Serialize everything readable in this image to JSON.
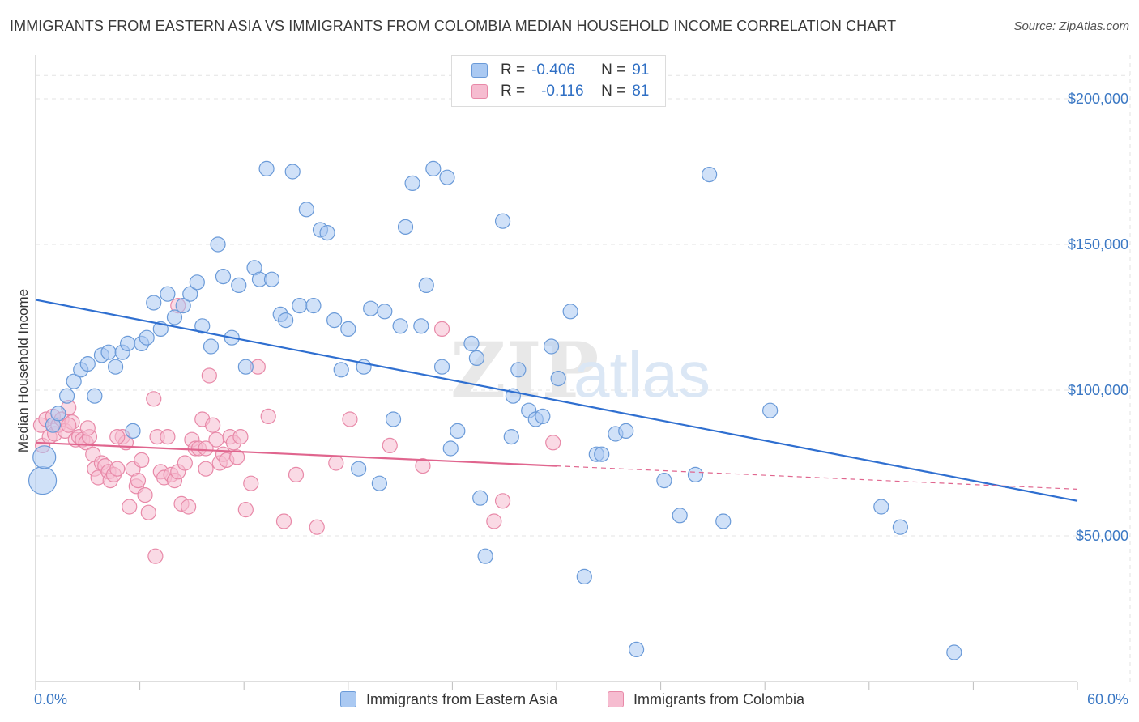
{
  "header": {
    "title": "IMMIGRANTS FROM EASTERN ASIA VS IMMIGRANTS FROM COLOMBIA MEDIAN HOUSEHOLD INCOME CORRELATION CHART",
    "source": "Source: ZipAtlas.com"
  },
  "legend": {
    "r_label": "R =",
    "n_label": "N =",
    "rows": [
      {
        "r": "-0.406",
        "n": "91"
      },
      {
        "r": "-0.116",
        "n": "81"
      }
    ]
  },
  "watermark": {
    "zip": "ZIP",
    "atlas": "atlas"
  },
  "colors": {
    "blue_fill": "#aac9f2",
    "blue_stroke": "#6a9ad8",
    "blue_line": "#2f6fd0",
    "pink_fill": "#f6bcd0",
    "pink_stroke": "#e889a8",
    "pink_line": "#e0658e",
    "axis_text": "#3b78c4"
  },
  "chart_data": {
    "type": "scatter",
    "title": "IMMIGRANTS FROM EASTERN ASIA VS IMMIGRANTS FROM COLOMBIA MEDIAN HOUSEHOLD INCOME CORRELATION CHART",
    "xlabel": "",
    "ylabel": "Median Household Income",
    "xlim": [
      0,
      60
    ],
    "ylim": [
      0,
      215000
    ],
    "x_tick_labels": [
      "0.0%",
      "60.0%"
    ],
    "y_ticks": [
      50000,
      100000,
      150000,
      200000
    ],
    "y_tick_labels": [
      "$50,000",
      "$100,000",
      "$150,000",
      "$200,000"
    ],
    "grid": true,
    "legend_position": "top-center",
    "series": [
      {
        "name": "Immigrants from Eastern Asia",
        "trend": {
          "x": [
            0,
            60
          ],
          "y": [
            131000,
            62000
          ]
        },
        "points": [
          [
            0.4,
            69000
          ],
          [
            0.5,
            77000
          ],
          [
            1.0,
            88000
          ],
          [
            1.3,
            92000
          ],
          [
            1.8,
            98000
          ],
          [
            2.2,
            103000
          ],
          [
            2.6,
            107000
          ],
          [
            3.0,
            109000
          ],
          [
            3.4,
            98000
          ],
          [
            3.8,
            112000
          ],
          [
            4.2,
            113000
          ],
          [
            4.6,
            108000
          ],
          [
            5.0,
            113000
          ],
          [
            5.3,
            116000
          ],
          [
            5.6,
            86000
          ],
          [
            6.1,
            116000
          ],
          [
            6.4,
            118000
          ],
          [
            6.8,
            130000
          ],
          [
            7.2,
            121000
          ],
          [
            7.6,
            133000
          ],
          [
            8.0,
            125000
          ],
          [
            8.5,
            129000
          ],
          [
            8.9,
            133000
          ],
          [
            9.3,
            137000
          ],
          [
            9.6,
            122000
          ],
          [
            10.1,
            115000
          ],
          [
            10.5,
            150000
          ],
          [
            10.8,
            139000
          ],
          [
            11.3,
            118000
          ],
          [
            11.7,
            136000
          ],
          [
            12.1,
            108000
          ],
          [
            12.6,
            142000
          ],
          [
            12.9,
            138000
          ],
          [
            13.3,
            176000
          ],
          [
            13.6,
            138000
          ],
          [
            14.1,
            126000
          ],
          [
            14.4,
            124000
          ],
          [
            14.8,
            175000
          ],
          [
            15.2,
            129000
          ],
          [
            15.6,
            162000
          ],
          [
            16.0,
            129000
          ],
          [
            16.4,
            155000
          ],
          [
            16.8,
            154000
          ],
          [
            17.2,
            124000
          ],
          [
            17.6,
            107000
          ],
          [
            18.0,
            121000
          ],
          [
            18.6,
            73000
          ],
          [
            18.9,
            108000
          ],
          [
            19.3,
            128000
          ],
          [
            19.8,
            68000
          ],
          [
            20.1,
            127000
          ],
          [
            20.6,
            90000
          ],
          [
            21.0,
            122000
          ],
          [
            21.3,
            156000
          ],
          [
            21.7,
            171000
          ],
          [
            22.2,
            122000
          ],
          [
            22.5,
            136000
          ],
          [
            22.9,
            176000
          ],
          [
            23.4,
            108000
          ],
          [
            23.7,
            173000
          ],
          [
            23.9,
            80000
          ],
          [
            24.3,
            86000
          ],
          [
            25.1,
            116000
          ],
          [
            25.4,
            111000
          ],
          [
            25.6,
            63000
          ],
          [
            25.9,
            43000
          ],
          [
            26.9,
            158000
          ],
          [
            27.4,
            84000
          ],
          [
            27.8,
            107000
          ],
          [
            27.5,
            98000
          ],
          [
            28.4,
            93000
          ],
          [
            28.8,
            90000
          ],
          [
            29.2,
            91000
          ],
          [
            29.7,
            115000
          ],
          [
            30.1,
            104000
          ],
          [
            30.8,
            127000
          ],
          [
            31.6,
            36000
          ],
          [
            32.3,
            78000
          ],
          [
            32.6,
            78000
          ],
          [
            33.4,
            85000
          ],
          [
            34.0,
            86000
          ],
          [
            34.6,
            11000
          ],
          [
            36.2,
            69000
          ],
          [
            37.1,
            57000
          ],
          [
            38.0,
            71000
          ],
          [
            38.8,
            174000
          ],
          [
            39.6,
            55000
          ],
          [
            42.3,
            93000
          ],
          [
            48.7,
            60000
          ],
          [
            49.8,
            53000
          ],
          [
            52.9,
            10000
          ]
        ]
      },
      {
        "name": "Immigrants from Colombia",
        "trend": {
          "x": [
            0,
            60
          ],
          "y": [
            82000,
            66000
          ],
          "solid_until": 30
        },
        "points": [
          [
            0.3,
            88000
          ],
          [
            0.4,
            81000
          ],
          [
            0.6,
            90000
          ],
          [
            0.8,
            84000
          ],
          [
            1.0,
            91000
          ],
          [
            1.1,
            85000
          ],
          [
            1.3,
            88000
          ],
          [
            1.5,
            90000
          ],
          [
            1.7,
            86000
          ],
          [
            1.9,
            94000
          ],
          [
            2.1,
            89000
          ],
          [
            2.3,
            83000
          ],
          [
            2.5,
            84000
          ],
          [
            2.7,
            83000
          ],
          [
            2.9,
            82000
          ],
          [
            3.1,
            84000
          ],
          [
            3.3,
            78000
          ],
          [
            3.4,
            73000
          ],
          [
            3.6,
            70000
          ],
          [
            3.8,
            75000
          ],
          [
            4.0,
            74000
          ],
          [
            4.2,
            72000
          ],
          [
            4.3,
            69000
          ],
          [
            4.5,
            71000
          ],
          [
            4.7,
            73000
          ],
          [
            5.0,
            84000
          ],
          [
            5.2,
            82000
          ],
          [
            5.4,
            60000
          ],
          [
            5.6,
            73000
          ],
          [
            5.8,
            67000
          ],
          [
            5.9,
            69000
          ],
          [
            6.1,
            76000
          ],
          [
            6.3,
            64000
          ],
          [
            6.5,
            58000
          ],
          [
            6.8,
            97000
          ],
          [
            7.0,
            84000
          ],
          [
            7.2,
            72000
          ],
          [
            7.4,
            70000
          ],
          [
            7.6,
            84000
          ],
          [
            7.8,
            71000
          ],
          [
            8.0,
            69000
          ],
          [
            8.2,
            72000
          ],
          [
            8.4,
            61000
          ],
          [
            8.6,
            75000
          ],
          [
            8.8,
            60000
          ],
          [
            9.0,
            83000
          ],
          [
            9.2,
            80000
          ],
          [
            9.4,
            80000
          ],
          [
            9.6,
            90000
          ],
          [
            9.8,
            73000
          ],
          [
            10.0,
            105000
          ],
          [
            10.2,
            88000
          ],
          [
            10.4,
            83000
          ],
          [
            10.6,
            75000
          ],
          [
            10.8,
            78000
          ],
          [
            11.0,
            76000
          ],
          [
            11.2,
            84000
          ],
          [
            11.4,
            82000
          ],
          [
            11.6,
            77000
          ],
          [
            11.8,
            84000
          ],
          [
            12.1,
            59000
          ],
          [
            12.4,
            68000
          ],
          [
            12.8,
            108000
          ],
          [
            13.4,
            91000
          ],
          [
            14.3,
            55000
          ],
          [
            15.0,
            71000
          ],
          [
            16.2,
            53000
          ],
          [
            17.3,
            75000
          ],
          [
            18.1,
            90000
          ],
          [
            20.4,
            81000
          ],
          [
            22.3,
            74000
          ],
          [
            23.4,
            121000
          ],
          [
            26.4,
            55000
          ],
          [
            26.9,
            62000
          ],
          [
            29.8,
            82000
          ],
          [
            8.2,
            129000
          ],
          [
            9.8,
            80000
          ],
          [
            6.9,
            43000
          ],
          [
            4.7,
            84000
          ],
          [
            3.0,
            87000
          ],
          [
            1.9,
            88000
          ]
        ]
      }
    ]
  },
  "bottom_legend": [
    {
      "label": "Immigrants from Eastern Asia"
    },
    {
      "label": "Immigrants from Colombia"
    }
  ]
}
